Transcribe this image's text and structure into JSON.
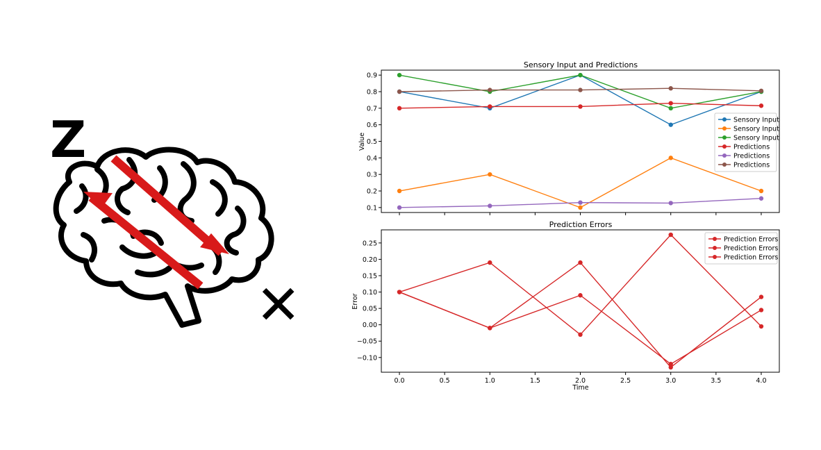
{
  "illustration": {
    "z_label": "Z",
    "x_label": "✕",
    "icon": "brain-icon",
    "arrow_icon": "double-arrow-icon",
    "arrow_color": "#d81a1a",
    "outline_color": "#000000"
  },
  "chart_data": [
    {
      "type": "line",
      "title": "Sensory Input and Predictions",
      "xlabel": "",
      "ylabel": "Value",
      "x": [
        0,
        1,
        2,
        3,
        4
      ],
      "xlim": [
        -0.2,
        4.2
      ],
      "ylim": [
        0.07,
        0.93
      ],
      "yticks": [
        0.1,
        0.2,
        0.3,
        0.4,
        0.5,
        0.6,
        0.7,
        0.8,
        0.9
      ],
      "yticklabels": [
        "0.1",
        "0.2",
        "0.3",
        "0.4",
        "0.5",
        "0.6",
        "0.7",
        "0.8",
        "0.9"
      ],
      "xticks": [
        0,
        0.5,
        1,
        1.5,
        2,
        2.5,
        3,
        3.5,
        4
      ],
      "show_xticklabels": false,
      "grid": false,
      "legend_position": "center-right",
      "series": [
        {
          "name": "Sensory Input",
          "color": "#1f77b4",
          "values": [
            0.8,
            0.7,
            0.9,
            0.6,
            0.8
          ]
        },
        {
          "name": "Sensory Input",
          "color": "#ff7f0e",
          "values": [
            0.2,
            0.3,
            0.1,
            0.4,
            0.2
          ]
        },
        {
          "name": "Sensory Input",
          "color": "#2ca02c",
          "values": [
            0.9,
            0.8,
            0.9,
            0.7,
            0.8
          ]
        },
        {
          "name": "Predictions",
          "color": "#d62728",
          "values": [
            0.7,
            0.71,
            0.71,
            0.73,
            0.715
          ]
        },
        {
          "name": "Predictions",
          "color": "#9467bd",
          "values": [
            0.1,
            0.11,
            0.13,
            0.127,
            0.155
          ]
        },
        {
          "name": "Predictions",
          "color": "#8c564b",
          "values": [
            0.8,
            0.81,
            0.81,
            0.82,
            0.805
          ]
        }
      ]
    },
    {
      "type": "line",
      "title": "Prediction Errors",
      "xlabel": "Time",
      "ylabel": "Error",
      "x": [
        0,
        1,
        2,
        3,
        4
      ],
      "xlim": [
        -0.2,
        4.2
      ],
      "ylim": [
        -0.145,
        0.29
      ],
      "yticks": [
        -0.1,
        -0.05,
        0.0,
        0.05,
        0.1,
        0.15,
        0.2,
        0.25
      ],
      "yticklabels": [
        "−0.10",
        "−0.05",
        "0.00",
        "0.05",
        "0.10",
        "0.15",
        "0.20",
        "0.25"
      ],
      "xticks": [
        0,
        0.5,
        1,
        1.5,
        2,
        2.5,
        3,
        3.5,
        4
      ],
      "xticklabels": [
        "0.0",
        "0.5",
        "1.0",
        "1.5",
        "2.0",
        "2.5",
        "3.0",
        "3.5",
        "4.0"
      ],
      "show_xticklabels": true,
      "grid": false,
      "legend_position": "top-right",
      "series": [
        {
          "name": "Prediction Errors",
          "color": "#d62728",
          "values": [
            0.1,
            -0.01,
            0.19,
            -0.13,
            0.085
          ]
        },
        {
          "name": "Prediction Errors",
          "color": "#d62728",
          "values": [
            0.1,
            0.19,
            -0.03,
            0.275,
            -0.005
          ]
        },
        {
          "name": "Prediction Errors",
          "color": "#d62728",
          "values": [
            0.1,
            -0.01,
            0.09,
            -0.12,
            0.045
          ]
        }
      ]
    }
  ]
}
